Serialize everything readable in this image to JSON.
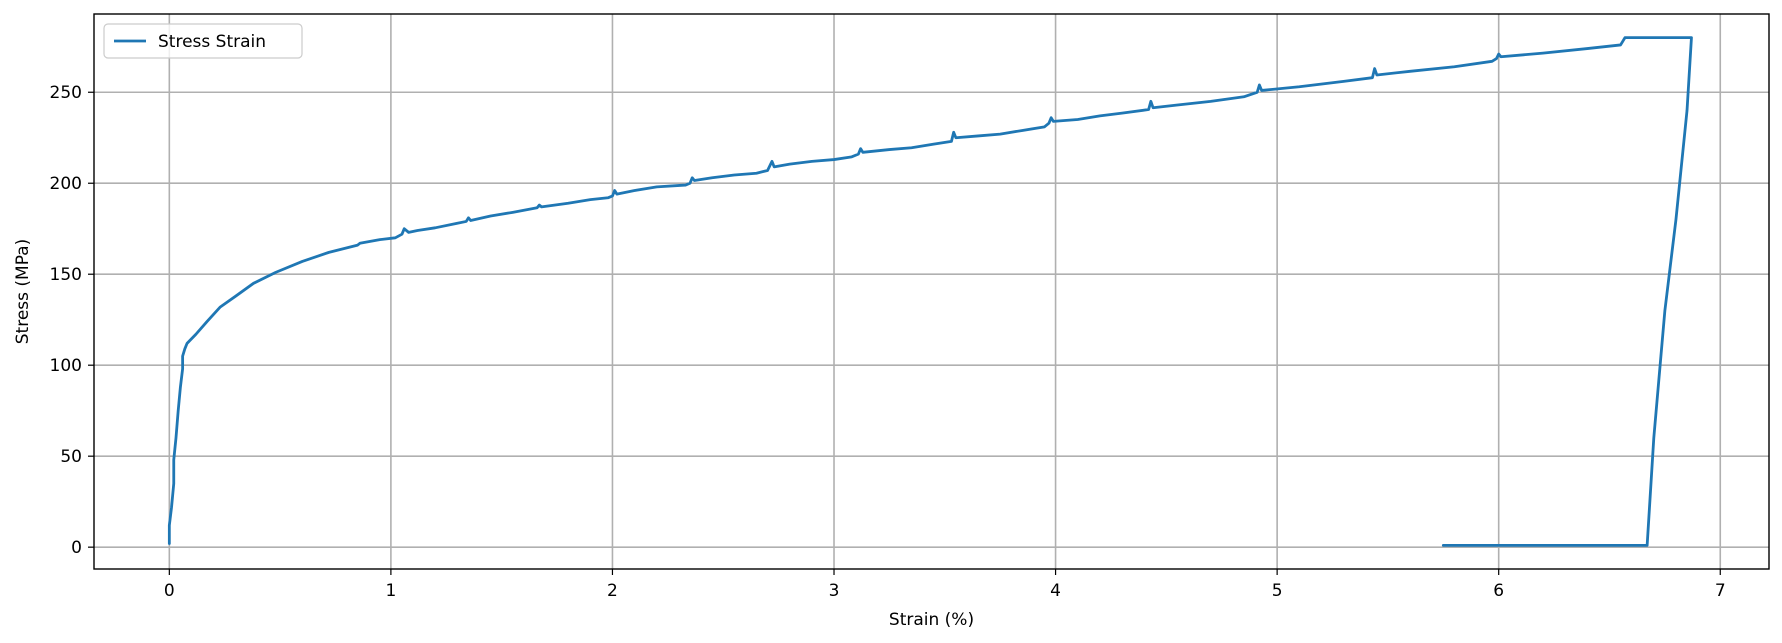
{
  "chart_data": {
    "type": "line",
    "xlabel": "Strain (%)",
    "ylabel": "Stress (MPa)",
    "xlim": [
      -0.34,
      7.22
    ],
    "ylim": [
      -12,
      293
    ],
    "xticks": [
      0,
      1,
      2,
      3,
      4,
      5,
      6,
      7
    ],
    "yticks": [
      0,
      50,
      100,
      150,
      200,
      250
    ],
    "grid": true,
    "legend_position": "top-left",
    "colors": {
      "series": "#1f77b4"
    },
    "series": [
      {
        "name": "Stress Strain",
        "color": "#1f77b4",
        "points": [
          [
            0.0,
            2
          ],
          [
            0.0,
            12
          ],
          [
            0.01,
            22
          ],
          [
            0.02,
            35
          ],
          [
            0.02,
            48
          ],
          [
            0.03,
            60
          ],
          [
            0.04,
            75
          ],
          [
            0.05,
            88
          ],
          [
            0.06,
            98
          ],
          [
            0.06,
            105
          ],
          [
            0.07,
            109
          ],
          [
            0.08,
            112
          ],
          [
            0.12,
            117
          ],
          [
            0.17,
            124
          ],
          [
            0.23,
            132
          ],
          [
            0.3,
            138
          ],
          [
            0.38,
            145
          ],
          [
            0.48,
            151
          ],
          [
            0.6,
            157
          ],
          [
            0.72,
            162
          ],
          [
            0.85,
            166
          ],
          [
            0.86,
            167
          ],
          [
            0.95,
            169
          ],
          [
            1.02,
            170
          ],
          [
            1.05,
            172
          ],
          [
            1.06,
            175
          ],
          [
            1.08,
            173
          ],
          [
            1.12,
            174
          ],
          [
            1.2,
            175.5
          ],
          [
            1.3,
            178
          ],
          [
            1.34,
            179
          ],
          [
            1.35,
            181
          ],
          [
            1.36,
            179.5
          ],
          [
            1.45,
            182
          ],
          [
            1.55,
            184
          ],
          [
            1.66,
            186.5
          ],
          [
            1.67,
            188
          ],
          [
            1.68,
            187
          ],
          [
            1.8,
            189
          ],
          [
            1.9,
            191
          ],
          [
            1.98,
            192
          ],
          [
            2.0,
            193
          ],
          [
            2.01,
            196
          ],
          [
            2.02,
            194
          ],
          [
            2.1,
            196
          ],
          [
            2.2,
            198
          ],
          [
            2.33,
            199
          ],
          [
            2.35,
            200
          ],
          [
            2.36,
            203
          ],
          [
            2.37,
            201.5
          ],
          [
            2.45,
            203
          ],
          [
            2.55,
            204.5
          ],
          [
            2.65,
            205.5
          ],
          [
            2.7,
            207
          ],
          [
            2.72,
            212
          ],
          [
            2.73,
            209
          ],
          [
            2.8,
            210.5
          ],
          [
            2.9,
            212
          ],
          [
            3.0,
            213
          ],
          [
            3.08,
            214.5
          ],
          [
            3.11,
            216
          ],
          [
            3.12,
            219
          ],
          [
            3.13,
            217
          ],
          [
            3.25,
            218.5
          ],
          [
            3.35,
            219.5
          ],
          [
            3.45,
            221.5
          ],
          [
            3.53,
            223
          ],
          [
            3.54,
            228
          ],
          [
            3.55,
            225
          ],
          [
            3.65,
            226
          ],
          [
            3.75,
            227
          ],
          [
            3.85,
            229
          ],
          [
            3.95,
            231
          ],
          [
            3.97,
            233
          ],
          [
            3.98,
            236
          ],
          [
            3.99,
            234
          ],
          [
            4.1,
            235
          ],
          [
            4.2,
            237
          ],
          [
            4.3,
            238.5
          ],
          [
            4.42,
            240.5
          ],
          [
            4.43,
            245
          ],
          [
            4.44,
            241.5
          ],
          [
            4.55,
            243
          ],
          [
            4.7,
            245
          ],
          [
            4.85,
            247.5
          ],
          [
            4.91,
            250
          ],
          [
            4.92,
            254
          ],
          [
            4.93,
            251
          ],
          [
            5.1,
            253
          ],
          [
            5.3,
            256
          ],
          [
            5.43,
            258
          ],
          [
            5.44,
            263
          ],
          [
            5.45,
            259.5
          ],
          [
            5.6,
            261.5
          ],
          [
            5.8,
            264
          ],
          [
            5.97,
            267
          ],
          [
            5.99,
            268.5
          ],
          [
            6.0,
            271
          ],
          [
            6.01,
            269.5
          ],
          [
            6.2,
            271.5
          ],
          [
            6.4,
            274
          ],
          [
            6.55,
            276
          ],
          [
            6.56,
            278
          ],
          [
            6.57,
            280
          ],
          [
            6.8,
            280
          ],
          [
            6.87,
            280
          ],
          [
            6.85,
            240
          ],
          [
            6.8,
            180
          ],
          [
            6.75,
            130
          ],
          [
            6.7,
            60
          ],
          [
            6.67,
            1
          ],
          [
            6.3,
            1
          ],
          [
            6.0,
            1
          ],
          [
            5.75,
            1
          ]
        ]
      }
    ]
  }
}
